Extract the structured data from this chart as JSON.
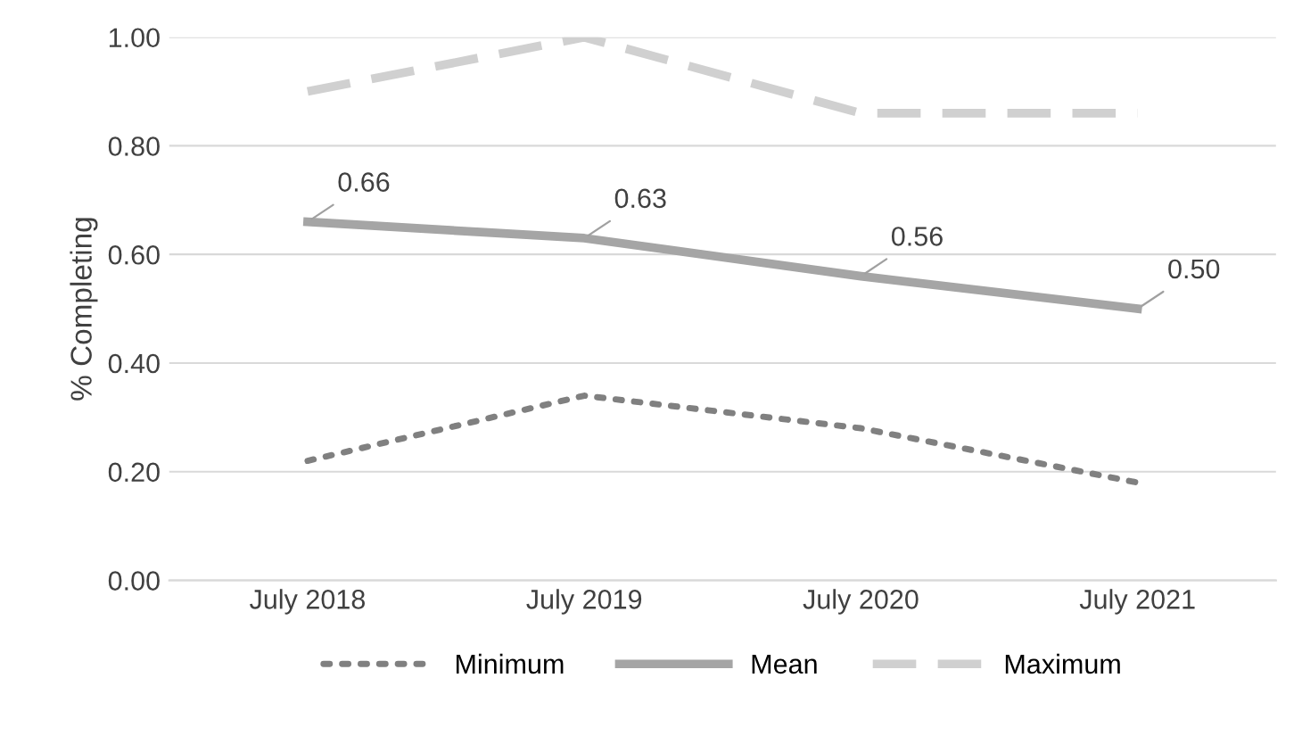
{
  "chart_data": {
    "type": "line",
    "ylabel": "% Completing",
    "categories": [
      "July 2018",
      "July 2019",
      "July 2020",
      "July 2021"
    ],
    "series": [
      {
        "name": "Minimum",
        "color": "#808080",
        "line_style": "dotted",
        "values": [
          0.22,
          0.34,
          0.28,
          0.18
        ]
      },
      {
        "name": "Mean",
        "color": "#a5a5a5",
        "line_style": "solid",
        "values": [
          0.66,
          0.63,
          0.56,
          0.5
        ],
        "value_labels": [
          "0.66",
          "0.63",
          "0.56",
          "0.50"
        ]
      },
      {
        "name": "Maximum",
        "color": "#d0d0d0",
        "line_style": "dashed",
        "values": [
          0.9,
          1.0,
          0.86,
          0.86
        ]
      }
    ],
    "ylim": [
      0,
      1.0
    ],
    "yticks": [
      {
        "value": 0,
        "label": "0.00"
      },
      {
        "value": 0.2,
        "label": "0.20"
      },
      {
        "value": 0.4,
        "label": "0.40"
      },
      {
        "value": 0.6,
        "label": "0.60"
      },
      {
        "value": 0.8,
        "label": "0.80"
      },
      {
        "value": 1.0,
        "label": "1.00"
      }
    ],
    "grid": "y",
    "legend": "bottom",
    "marker": "none"
  }
}
